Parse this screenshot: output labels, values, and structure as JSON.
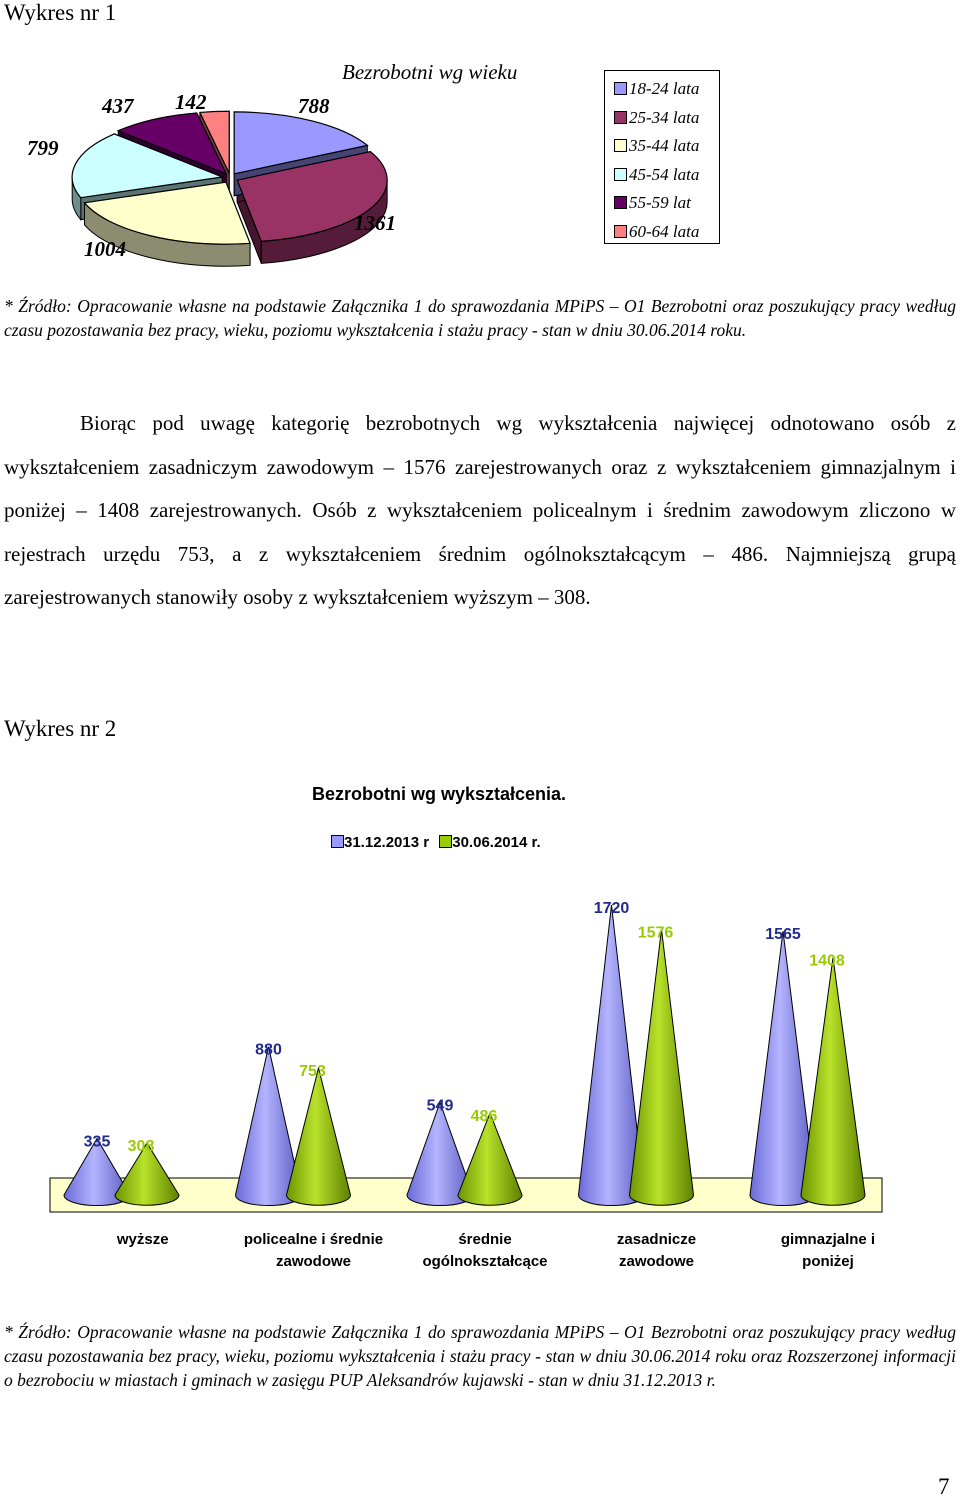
{
  "chart1": {
    "heading": "Wykres nr 1",
    "chart_data": {
      "type": "pie",
      "title": "Bezrobotni wg wieku",
      "categories": [
        "18-24 lata",
        "25-34 lata",
        "35-44 lata",
        "45-54 lata",
        "55-59 lat",
        "60-64 lata"
      ],
      "values": [
        788,
        1361,
        1004,
        799,
        437,
        142
      ],
      "colors": [
        "#9999ff",
        "#993366",
        "#ffffcc",
        "#ccffff",
        "#660066",
        "#ff8080"
      ],
      "legend_position": "right"
    },
    "source_note": "* Źródło: Opracowanie własne na podstawie Załącznika 1 do sprawozdania MPiPS – O1 Bezrobotni oraz poszukujący pracy według czasu pozostawania bez pracy, wieku, poziomu wykształcenia i stażu pracy - stan w dniu 30.06.2014 roku."
  },
  "paragraph": "Biorąc pod uwagę kategorię bezrobotnych wg wykształcenia najwięcej odnotowano osób z wykształceniem zasadniczym zawodowym – 1576 zarejestrowanych oraz z wykształceniem gimnazjalnym i poniżej – 1408 zarejestrowanych. Osób z wykształceniem policealnym i średnim zawodowym zliczono w rejestrach urzędu 753, a z wykształceniem średnim ogólnokształcącym – 486. Najmniejszą grupą zarejestrowanych stanowiły osoby z wykształceniem wyższym – 308.",
  "chart2": {
    "heading": "Wykres nr 2",
    "chart_data": {
      "type": "bar",
      "shape": "cone",
      "title": "Bezrobotni wg wykształcenia.",
      "categories": [
        "wyższe",
        "policealne i średnie zawodowe",
        "średnie ogólnokształcące",
        "zasadnicze zawodowe",
        "gimnazjalne i poniżej"
      ],
      "series": [
        {
          "name": "31.12.2013 r",
          "values": [
            335,
            880,
            549,
            1720,
            1565
          ],
          "color": "#9999ff"
        },
        {
          "name": "30.06.2014 r.",
          "values": [
            308,
            753,
            486,
            1576,
            1408
          ],
          "color": "#99cc00"
        }
      ],
      "legend_position": "top"
    },
    "source_note": "* Źródło: Opracowanie własne na podstawie Załącznika 1 do sprawozdania MPiPS – O1 Bezrobotni oraz poszukujący pracy według czasu pozostawania bez pracy, wieku, poziomu wykształcenia i stażu pracy - stan w dniu 30.06.2014 roku oraz Rozszerzonej informacji o bezrobociu w miastach i gminach w zasięgu PUP Aleksandrów kujawski - stan w dniu 31.12.2013 r."
  },
  "page_number": "7"
}
